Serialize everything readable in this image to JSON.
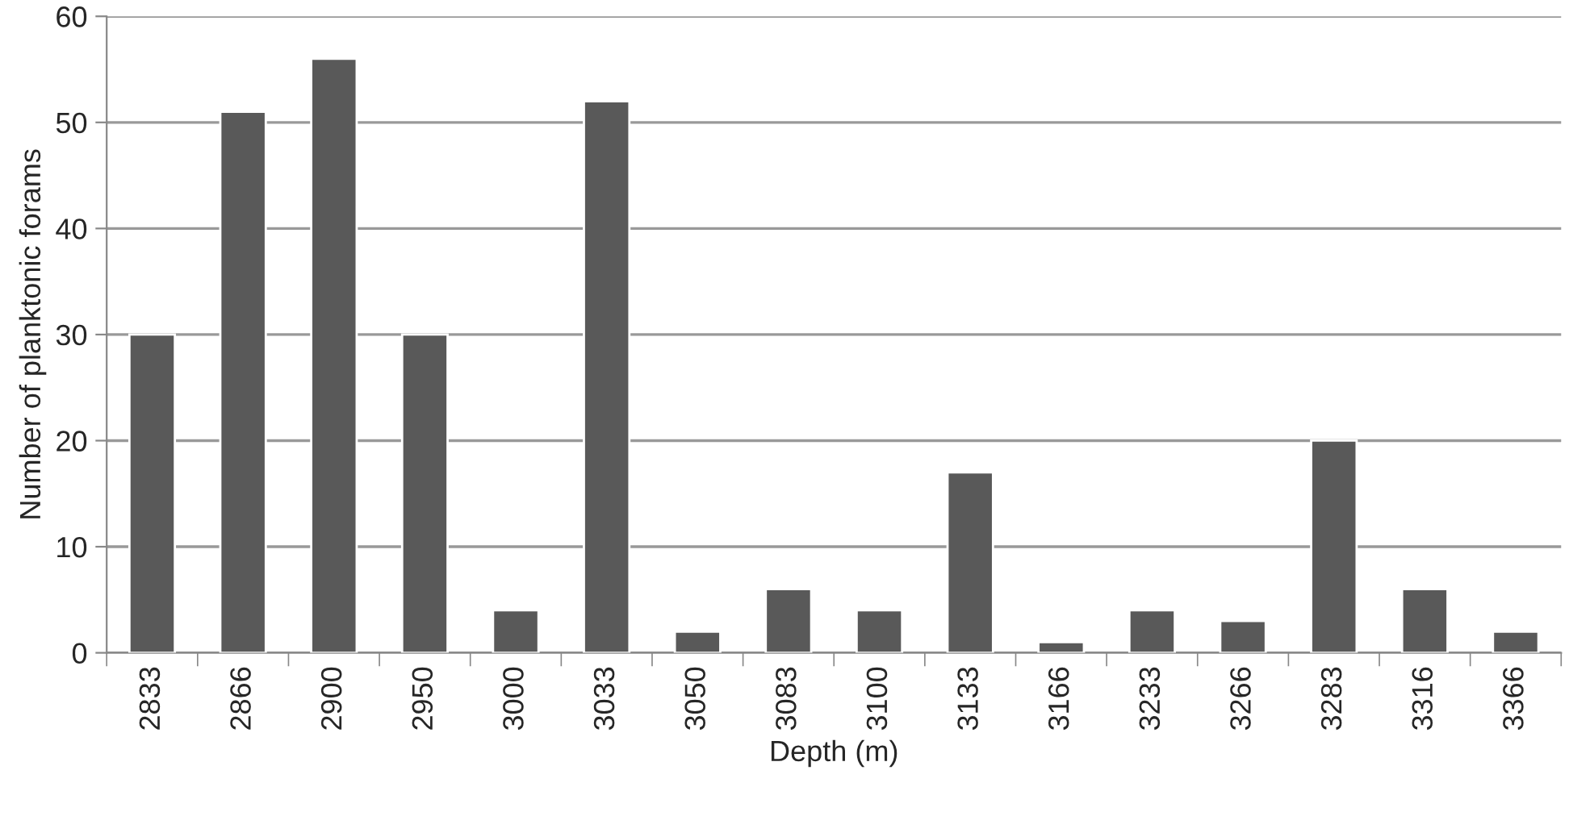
{
  "chart_data": {
    "type": "bar",
    "categories": [
      "2833",
      "2866",
      "2900",
      "2950",
      "3000",
      "3033",
      "3050",
      "3083",
      "3100",
      "3133",
      "3166",
      "3233",
      "3266",
      "3283",
      "3316",
      "3366"
    ],
    "values": [
      30,
      51,
      56,
      30,
      4,
      52,
      2,
      6,
      4,
      17,
      1,
      4,
      3,
      20,
      6,
      2
    ],
    "color": "#595959",
    "xlabel": "Depth (m)",
    "ylabel": "Number of planktonic forams",
    "ylim": [
      0,
      60
    ],
    "yticks": [
      0,
      10,
      20,
      30,
      40,
      50,
      60
    ],
    "grid": "y",
    "legend": false
  }
}
